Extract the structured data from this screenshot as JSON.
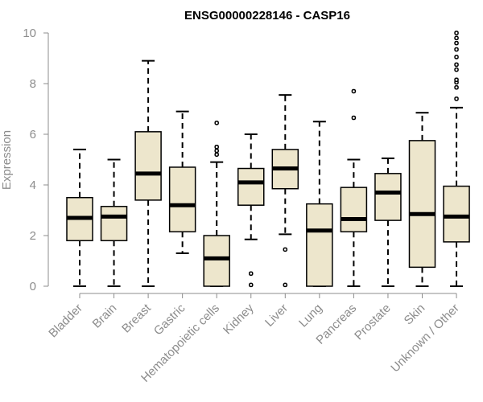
{
  "chart_data": {
    "type": "box",
    "title": "ENSG00000228146 - CASP16",
    "ylabel": "Expression",
    "xlabel": "",
    "ylim": [
      0,
      10
    ],
    "yticks": [
      "0",
      "2",
      "4",
      "6",
      "8",
      "10"
    ],
    "grid": false,
    "colors": {
      "box_fill": "#ede6cc",
      "line": "#000000",
      "axis": "#8c8c8c"
    },
    "categories": [
      "Bladder",
      "Brain",
      "Breast",
      "Gastric",
      "Hematopoietic cells",
      "Kidney",
      "Liver",
      "Lung",
      "Pancreas",
      "Prostate",
      "Skin",
      "Unknown / Other"
    ],
    "boxes": [
      {
        "min": 0,
        "q1": 1.8,
        "median": 2.7,
        "q3": 3.5,
        "max": 5.4,
        "outliers": []
      },
      {
        "min": 0,
        "q1": 1.8,
        "median": 2.75,
        "q3": 3.15,
        "max": 5.0,
        "outliers": []
      },
      {
        "min": 0,
        "q1": 3.4,
        "median": 4.45,
        "q3": 6.1,
        "max": 8.9,
        "outliers": []
      },
      {
        "min": 1.3,
        "q1": 2.15,
        "median": 3.2,
        "q3": 4.7,
        "max": 6.9,
        "outliers": []
      },
      {
        "min": 0,
        "q1": 0,
        "median": 1.1,
        "q3": 2.0,
        "max": 4.9,
        "outliers": [
          5.2,
          5.35,
          5.5,
          6.45
        ]
      },
      {
        "min": 1.85,
        "q1": 3.2,
        "median": 4.1,
        "q3": 4.65,
        "max": 6.0,
        "outliers": [
          0.5,
          0.05
        ]
      },
      {
        "min": 2.05,
        "q1": 3.85,
        "median": 4.65,
        "q3": 5.4,
        "max": 7.55,
        "outliers": [
          1.45,
          0.05
        ]
      },
      {
        "min": 0,
        "q1": 0,
        "median": 2.2,
        "q3": 3.25,
        "max": 6.5,
        "outliers": []
      },
      {
        "min": 0,
        "q1": 2.15,
        "median": 2.65,
        "q3": 3.9,
        "max": 5.0,
        "outliers": [
          6.65,
          7.7
        ]
      },
      {
        "min": 0,
        "q1": 2.6,
        "median": 3.7,
        "q3": 4.45,
        "max": 5.05,
        "outliers": []
      },
      {
        "min": 0,
        "q1": 0.75,
        "median": 2.85,
        "q3": 5.75,
        "max": 6.85,
        "outliers": []
      },
      {
        "min": 0,
        "q1": 1.75,
        "median": 2.75,
        "q3": 3.95,
        "max": 7.05,
        "outliers": [
          7.4,
          7.85,
          8.05,
          8.15,
          8.55,
          8.75,
          9.05,
          9.35,
          9.6,
          9.8,
          10.0
        ]
      }
    ]
  }
}
